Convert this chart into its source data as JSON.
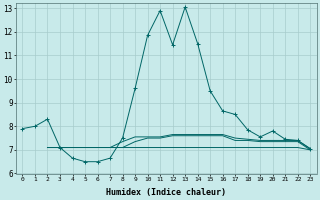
{
  "xlabel": "Humidex (Indice chaleur)",
  "background_color": "#c8eaea",
  "grid_color": "#a8cccc",
  "line_color": "#006666",
  "xlim": [
    -0.5,
    23.5
  ],
  "ylim": [
    6,
    13.2
  ],
  "xticks": [
    0,
    1,
    2,
    3,
    4,
    5,
    6,
    7,
    8,
    9,
    10,
    11,
    12,
    13,
    14,
    15,
    16,
    17,
    18,
    19,
    20,
    21,
    22,
    23
  ],
  "yticks": [
    6,
    7,
    8,
    9,
    10,
    11,
    12,
    13
  ],
  "series": [
    {
      "x": [
        0,
        1,
        2,
        3,
        4,
        5,
        6,
        7,
        8,
        9,
        10,
        11,
        12,
        13,
        14,
        15,
        16,
        17,
        18,
        19,
        20,
        21,
        22,
        23
      ],
      "y": [
        7.9,
        8.0,
        8.3,
        7.1,
        6.65,
        6.5,
        6.5,
        6.65,
        7.5,
        9.6,
        11.85,
        12.9,
        11.45,
        13.05,
        11.5,
        9.5,
        8.65,
        8.5,
        7.85,
        7.55,
        7.8,
        7.45,
        7.4,
        7.05
      ],
      "marker": "+"
    },
    {
      "x": [
        2,
        3,
        4,
        5,
        6,
        7,
        8,
        9,
        10,
        11,
        12,
        13,
        14,
        15,
        16,
        17,
        18,
        19,
        20,
        21,
        22,
        23
      ],
      "y": [
        7.1,
        7.1,
        7.1,
        7.1,
        7.1,
        7.1,
        7.35,
        7.55,
        7.55,
        7.55,
        7.65,
        7.65,
        7.65,
        7.65,
        7.65,
        7.5,
        7.45,
        7.4,
        7.4,
        7.4,
        7.4,
        7.05
      ],
      "marker": null
    },
    {
      "x": [
        2,
        3,
        4,
        5,
        6,
        7,
        8,
        9,
        10,
        11,
        12,
        13,
        14,
        15,
        16,
        17,
        18,
        19,
        20,
        21,
        22,
        23
      ],
      "y": [
        7.1,
        7.1,
        7.1,
        7.1,
        7.1,
        7.1,
        7.1,
        7.35,
        7.5,
        7.5,
        7.6,
        7.6,
        7.6,
        7.6,
        7.6,
        7.4,
        7.4,
        7.35,
        7.35,
        7.35,
        7.35,
        7.0
      ],
      "marker": null
    },
    {
      "x": [
        2,
        3,
        4,
        5,
        6,
        7,
        8,
        9,
        10,
        11,
        12,
        13,
        14,
        15,
        16,
        17,
        18,
        19,
        20,
        21,
        22,
        23
      ],
      "y": [
        7.1,
        7.1,
        7.1,
        7.1,
        7.1,
        7.1,
        7.1,
        7.1,
        7.1,
        7.1,
        7.1,
        7.1,
        7.1,
        7.1,
        7.1,
        7.1,
        7.1,
        7.1,
        7.1,
        7.1,
        7.1,
        7.0
      ],
      "marker": null
    }
  ]
}
